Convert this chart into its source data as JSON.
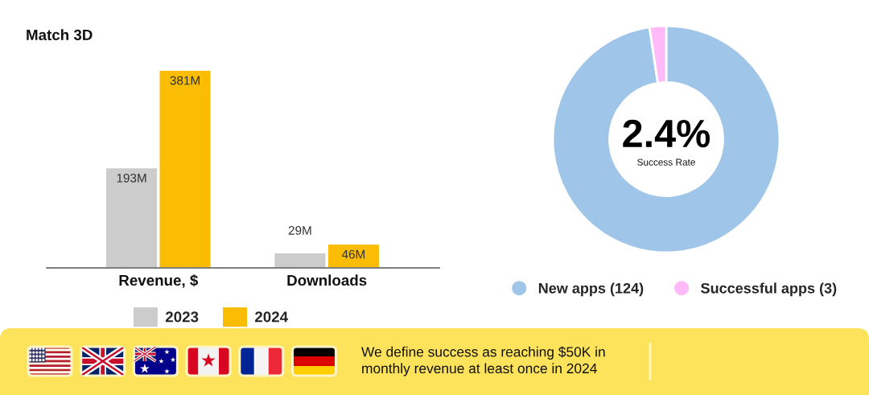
{
  "chart_data": [
    {
      "type": "bar",
      "title": "Match 3D",
      "categories": [
        "Revenue, $",
        "Downloads"
      ],
      "series": [
        {
          "name": "2023",
          "color": "#cccccc",
          "values": [
            193,
            29
          ],
          "value_labels": [
            "193M",
            "29M"
          ]
        },
        {
          "name": "2024",
          "color": "#fbbc04",
          "values": [
            381,
            46
          ],
          "value_labels": [
            "381M",
            "46M"
          ]
        }
      ],
      "legend": "bottom",
      "tick_labels": "x"
    },
    {
      "type": "donut",
      "categories": [
        "New apps (124)",
        "Successful apps (3)"
      ],
      "values": [
        124,
        3
      ],
      "colors": [
        "#9fc5e8",
        "#ffbaf7"
      ],
      "legend": "bottom",
      "annotations": [
        "2.4%",
        "Success Rate",
        "We define success as reaching $50K in\nmonthly revenue at least once in 2024"
      ]
    }
  ]
}
